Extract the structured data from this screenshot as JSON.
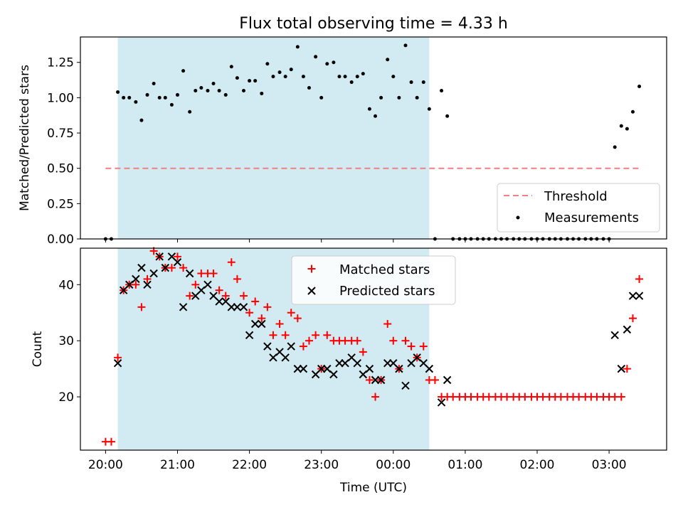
{
  "figure": {
    "title": "Flux total observing time = 4.33 h",
    "xlabel": "Time (UTC)"
  },
  "x_ticks": [
    "20:00",
    "21:00",
    "22:00",
    "23:00",
    "00:00",
    "01:00",
    "02:00",
    "03:00"
  ],
  "colors": {
    "threshold": "#f08080",
    "measurements": "#000000",
    "matched": "#ff0000",
    "predicted": "#000000",
    "observing_window": "#add8e6"
  },
  "chart_data": [
    {
      "type": "scatter",
      "ylabel": "Matched/Predicted stars",
      "x_unit": "hours since 20:00 UTC",
      "xlim": [
        -0.35,
        7.8
      ],
      "ylim": [
        0.0,
        1.43
      ],
      "y_ticks": [
        "0.00",
        "0.25",
        "0.50",
        "0.75",
        "1.00",
        "1.25"
      ],
      "grid": false,
      "legend_position": "lower-right",
      "shaded_region": {
        "x_start": 0.17,
        "x_end": 4.5
      },
      "threshold": {
        "name": "Threshold",
        "y": 0.5,
        "x_start": 0.0,
        "x_end": 7.42
      },
      "series": [
        {
          "name": "Measurements",
          "points": [
            [
              0.0,
              0.0
            ],
            [
              0.08,
              0.0
            ],
            [
              0.17,
              1.04
            ],
            [
              0.25,
              1.0
            ],
            [
              0.33,
              1.0
            ],
            [
              0.42,
              0.97
            ],
            [
              0.5,
              0.84
            ],
            [
              0.58,
              1.02
            ],
            [
              0.67,
              1.1
            ],
            [
              0.75,
              1.0
            ],
            [
              0.83,
              1.0
            ],
            [
              0.92,
              0.95
            ],
            [
              1.0,
              1.02
            ],
            [
              1.08,
              1.19
            ],
            [
              1.17,
              0.9
            ],
            [
              1.25,
              1.05
            ],
            [
              1.33,
              1.07
            ],
            [
              1.42,
              1.05
            ],
            [
              1.5,
              1.1
            ],
            [
              1.58,
              1.05
            ],
            [
              1.67,
              1.02
            ],
            [
              1.75,
              1.22
            ],
            [
              1.83,
              1.14
            ],
            [
              1.92,
              1.05
            ],
            [
              2.0,
              1.12
            ],
            [
              2.08,
              1.12
            ],
            [
              2.17,
              1.03
            ],
            [
              2.25,
              1.24
            ],
            [
              2.33,
              1.15
            ],
            [
              2.42,
              1.18
            ],
            [
              2.5,
              1.15
            ],
            [
              2.58,
              1.2
            ],
            [
              2.67,
              1.36
            ],
            [
              2.75,
              1.15
            ],
            [
              2.83,
              1.07
            ],
            [
              2.92,
              1.29
            ],
            [
              3.0,
              1.0
            ],
            [
              3.08,
              1.24
            ],
            [
              3.17,
              1.25
            ],
            [
              3.25,
              1.15
            ],
            [
              3.33,
              1.15
            ],
            [
              3.42,
              1.11
            ],
            [
              3.5,
              1.15
            ],
            [
              3.58,
              1.17
            ],
            [
              3.67,
              0.92
            ],
            [
              3.75,
              0.87
            ],
            [
              3.83,
              1.0
            ],
            [
              3.92,
              1.27
            ],
            [
              4.0,
              1.15
            ],
            [
              4.08,
              1.0
            ],
            [
              4.17,
              1.37
            ],
            [
              4.25,
              1.11
            ],
            [
              4.33,
              1.0
            ],
            [
              4.42,
              1.11
            ],
            [
              4.5,
              0.92
            ],
            [
              4.58,
              0.0
            ],
            [
              4.67,
              1.05
            ],
            [
              4.75,
              0.87
            ],
            [
              4.83,
              0.0
            ],
            [
              4.92,
              0.0
            ],
            [
              5.0,
              0.0
            ],
            [
              5.08,
              0.0
            ],
            [
              5.17,
              0.0
            ],
            [
              5.25,
              0.0
            ],
            [
              5.33,
              0.0
            ],
            [
              5.42,
              0.0
            ],
            [
              5.5,
              0.0
            ],
            [
              5.58,
              0.0
            ],
            [
              5.67,
              0.0
            ],
            [
              5.75,
              0.0
            ],
            [
              5.83,
              0.0
            ],
            [
              5.92,
              0.0
            ],
            [
              6.0,
              0.0
            ],
            [
              6.08,
              0.0
            ],
            [
              6.17,
              0.0
            ],
            [
              6.25,
              0.0
            ],
            [
              6.33,
              0.0
            ],
            [
              6.42,
              0.0
            ],
            [
              6.5,
              0.0
            ],
            [
              6.58,
              0.0
            ],
            [
              6.67,
              0.0
            ],
            [
              6.75,
              0.0
            ],
            [
              6.83,
              0.0
            ],
            [
              6.92,
              0.0
            ],
            [
              7.0,
              0.0
            ],
            [
              7.08,
              0.65
            ],
            [
              7.17,
              0.8
            ],
            [
              7.25,
              0.78
            ],
            [
              7.33,
              0.9
            ],
            [
              7.42,
              1.08
            ]
          ]
        }
      ]
    },
    {
      "type": "scatter",
      "ylabel": "Count",
      "x_unit": "hours since 20:00 UTC",
      "xlim": [
        -0.35,
        7.8
      ],
      "ylim": [
        10.5,
        46.5
      ],
      "y_ticks": [
        "20",
        "30",
        "40"
      ],
      "grid": false,
      "legend_position": "top-center",
      "shaded_region": {
        "x_start": 0.17,
        "x_end": 4.5
      },
      "series": [
        {
          "name": "Matched stars",
          "marker": "plus",
          "points": [
            [
              0.0,
              12
            ],
            [
              0.08,
              12
            ],
            [
              0.17,
              27
            ],
            [
              0.25,
              39
            ],
            [
              0.33,
              40
            ],
            [
              0.42,
              40
            ],
            [
              0.5,
              36
            ],
            [
              0.58,
              41
            ],
            [
              0.67,
              46
            ],
            [
              0.75,
              45
            ],
            [
              0.83,
              43
            ],
            [
              0.92,
              43
            ],
            [
              1.0,
              45
            ],
            [
              1.08,
              43
            ],
            [
              1.17,
              38
            ],
            [
              1.25,
              40
            ],
            [
              1.33,
              42
            ],
            [
              1.42,
              42
            ],
            [
              1.5,
              42
            ],
            [
              1.58,
              39
            ],
            [
              1.67,
              38
            ],
            [
              1.75,
              44
            ],
            [
              1.83,
              41
            ],
            [
              1.92,
              38
            ],
            [
              2.0,
              35
            ],
            [
              2.08,
              37
            ],
            [
              2.17,
              34
            ],
            [
              2.25,
              36
            ],
            [
              2.33,
              31
            ],
            [
              2.42,
              33
            ],
            [
              2.5,
              31
            ],
            [
              2.58,
              35
            ],
            [
              2.67,
              34
            ],
            [
              2.75,
              29
            ],
            [
              2.83,
              30
            ],
            [
              2.92,
              31
            ],
            [
              3.0,
              25
            ],
            [
              3.08,
              31
            ],
            [
              3.17,
              30
            ],
            [
              3.25,
              30
            ],
            [
              3.33,
              30
            ],
            [
              3.42,
              30
            ],
            [
              3.5,
              30
            ],
            [
              3.58,
              28
            ],
            [
              3.67,
              23
            ],
            [
              3.75,
              20
            ],
            [
              3.83,
              23
            ],
            [
              3.92,
              33
            ],
            [
              4.0,
              30
            ],
            [
              4.08,
              25
            ],
            [
              4.17,
              30
            ],
            [
              4.25,
              29
            ],
            [
              4.33,
              27
            ],
            [
              4.42,
              29
            ],
            [
              4.5,
              23
            ],
            [
              4.58,
              23
            ],
            [
              4.67,
              20
            ],
            [
              4.75,
              20
            ],
            [
              4.83,
              20
            ],
            [
              4.92,
              20
            ],
            [
              5.0,
              20
            ],
            [
              5.08,
              20
            ],
            [
              5.17,
              20
            ],
            [
              5.25,
              20
            ],
            [
              5.33,
              20
            ],
            [
              5.42,
              20
            ],
            [
              5.5,
              20
            ],
            [
              5.58,
              20
            ],
            [
              5.67,
              20
            ],
            [
              5.75,
              20
            ],
            [
              5.83,
              20
            ],
            [
              5.92,
              20
            ],
            [
              6.0,
              20
            ],
            [
              6.08,
              20
            ],
            [
              6.17,
              20
            ],
            [
              6.25,
              20
            ],
            [
              6.33,
              20
            ],
            [
              6.42,
              20
            ],
            [
              6.5,
              20
            ],
            [
              6.58,
              20
            ],
            [
              6.67,
              20
            ],
            [
              6.75,
              20
            ],
            [
              6.83,
              20
            ],
            [
              6.92,
              20
            ],
            [
              7.0,
              20
            ],
            [
              7.08,
              20
            ],
            [
              7.17,
              20
            ],
            [
              7.25,
              25
            ],
            [
              7.33,
              34
            ],
            [
              7.42,
              41
            ]
          ]
        },
        {
          "name": "Predicted stars",
          "marker": "x",
          "points": [
            [
              0.17,
              26
            ],
            [
              0.25,
              39
            ],
            [
              0.33,
              40
            ],
            [
              0.42,
              41
            ],
            [
              0.5,
              43
            ],
            [
              0.58,
              40
            ],
            [
              0.67,
              42
            ],
            [
              0.75,
              45
            ],
            [
              0.83,
              43
            ],
            [
              0.92,
              45
            ],
            [
              1.0,
              44
            ],
            [
              1.08,
              36
            ],
            [
              1.17,
              42
            ],
            [
              1.25,
              38
            ],
            [
              1.33,
              39
            ],
            [
              1.42,
              40
            ],
            [
              1.5,
              38
            ],
            [
              1.58,
              37
            ],
            [
              1.67,
              37
            ],
            [
              1.75,
              36
            ],
            [
              1.83,
              36
            ],
            [
              1.92,
              36
            ],
            [
              2.0,
              31
            ],
            [
              2.08,
              33
            ],
            [
              2.17,
              33
            ],
            [
              2.25,
              29
            ],
            [
              2.33,
              27
            ],
            [
              2.42,
              28
            ],
            [
              2.5,
              27
            ],
            [
              2.58,
              29
            ],
            [
              2.67,
              25
            ],
            [
              2.75,
              25
            ],
            [
              2.92,
              24
            ],
            [
              3.0,
              25
            ],
            [
              3.08,
              25
            ],
            [
              3.17,
              24
            ],
            [
              3.25,
              26
            ],
            [
              3.33,
              26
            ],
            [
              3.42,
              27
            ],
            [
              3.5,
              26
            ],
            [
              3.58,
              24
            ],
            [
              3.67,
              25
            ],
            [
              3.75,
              23
            ],
            [
              3.83,
              23
            ],
            [
              3.92,
              26
            ],
            [
              4.0,
              26
            ],
            [
              4.08,
              25
            ],
            [
              4.17,
              22
            ],
            [
              4.25,
              26
            ],
            [
              4.33,
              27
            ],
            [
              4.42,
              26
            ],
            [
              4.5,
              25
            ],
            [
              4.67,
              19
            ],
            [
              4.75,
              23
            ],
            [
              7.08,
              31
            ],
            [
              7.17,
              25
            ],
            [
              7.25,
              32
            ],
            [
              7.33,
              38
            ],
            [
              7.42,
              38
            ]
          ]
        }
      ]
    }
  ]
}
